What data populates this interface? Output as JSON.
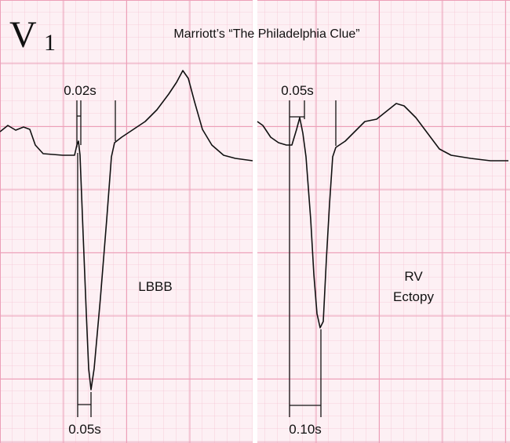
{
  "lead": {
    "letter": "V",
    "subscript": "1"
  },
  "title": "Marriott’s “The Philadelphia Clue”",
  "panels": [
    {
      "measure_top": "0.02s",
      "measure_bottom": "0.05s",
      "label_lines": [
        "LBBB"
      ]
    },
    {
      "measure_top": "0.05s",
      "measure_bottom": "0.10s",
      "label_lines": [
        "RV",
        "Ectopy"
      ]
    }
  ]
}
